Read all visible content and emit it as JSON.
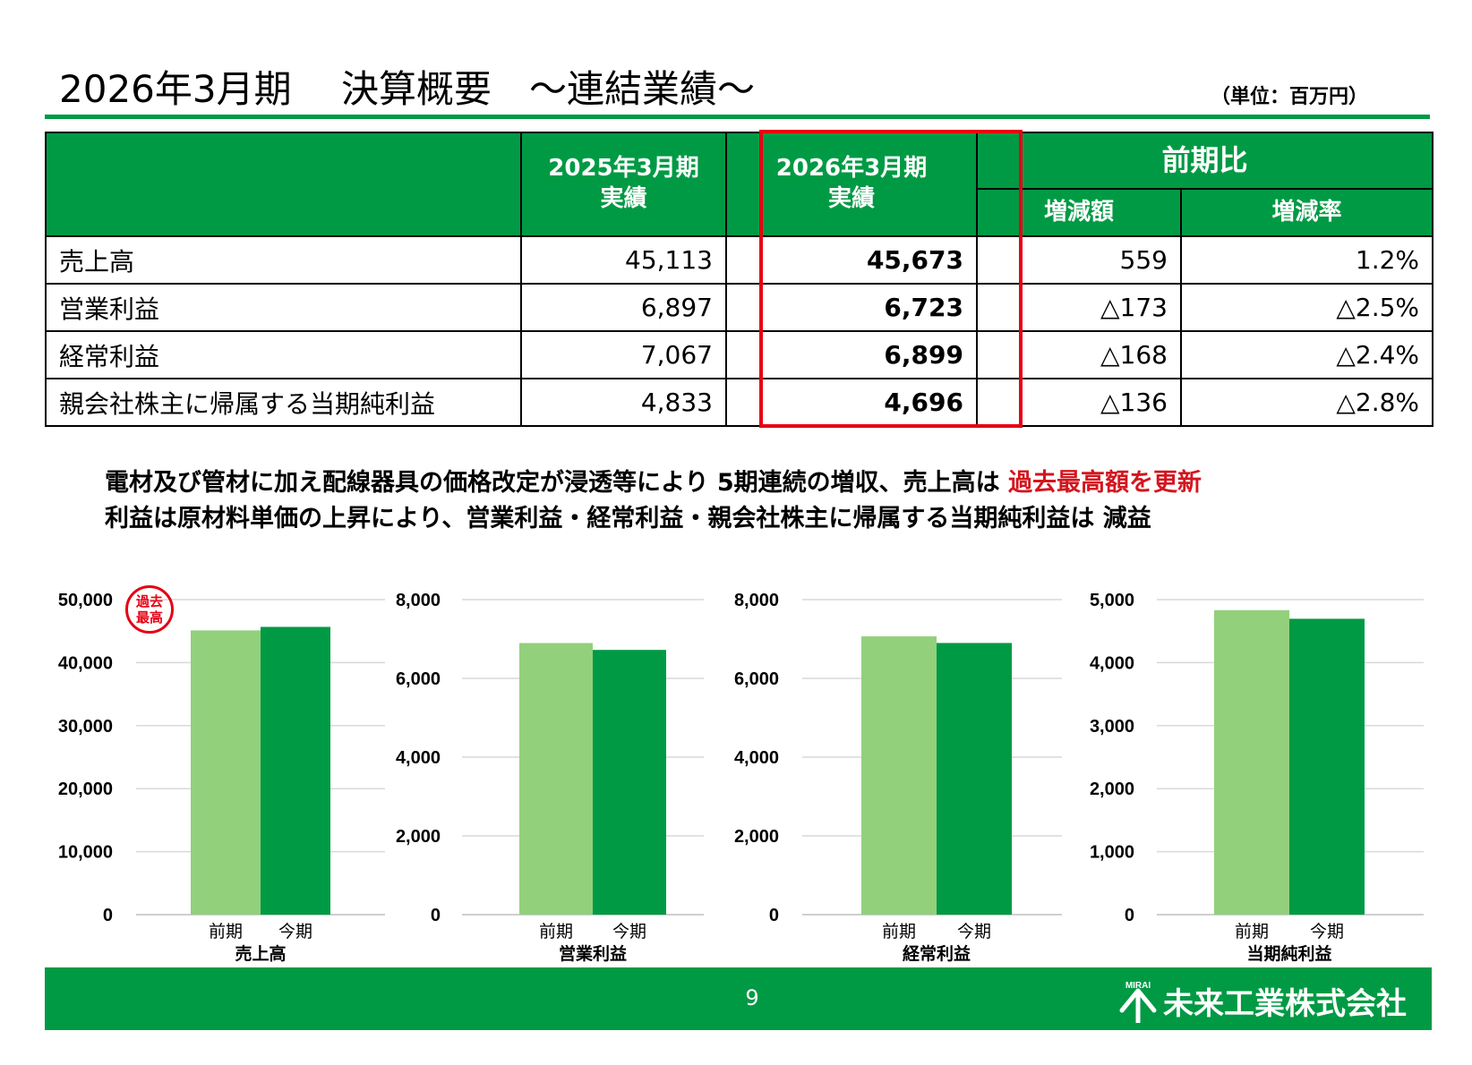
{
  "header": {
    "title": "2026年3月期　 決算概要　～連結業績～",
    "unit": "（単位：百万円）"
  },
  "table": {
    "col_prev": "2025年3月期\n実績",
    "col_prev_l1": "2025年3月期",
    "col_prev_l2": "実績",
    "col_curr_l1": "2026年3月期",
    "col_curr_l2": "実績",
    "col_compare": "前期比",
    "col_change": "増減額",
    "col_rate": "増減率",
    "rows": [
      {
        "label": "売上高",
        "prev": "45,113",
        "curr": "45,673",
        "change": "559",
        "rate": "1.2%"
      },
      {
        "label": "営業利益",
        "prev": "6,897",
        "curr": "6,723",
        "change": "△173",
        "rate": "△2.5%"
      },
      {
        "label": "経常利益",
        "prev": "7,067",
        "curr": "6,899",
        "change": "△168",
        "rate": "△2.4%"
      },
      {
        "label": "親会社株主に帰属する当期純利益",
        "prev": "4,833",
        "curr": "4,696",
        "change": "△136",
        "rate": "△2.8%"
      }
    ]
  },
  "summary": {
    "line1_a": "電材及び管材に加え配線器具の価格改定が浸透等により 5期連続の増収、売上高は ",
    "line1_b": "過去最高額を更新",
    "line2": "利益は原材料単価の上昇により、営業利益・経常利益・親会社株主に帰属する当期純利益は 減益"
  },
  "stamp": {
    "line1": "過去",
    "line2": "最高"
  },
  "colors": {
    "green": "#009a44",
    "light_green": "#92d07c",
    "red": "#e60012"
  },
  "chart_data": [
    {
      "type": "bar",
      "title": "売上高",
      "categories": [
        "前期",
        "今期"
      ],
      "values": [
        45113,
        45673
      ],
      "ylim": [
        0,
        50000
      ],
      "yticks": [
        "0",
        "10,000",
        "20,000",
        "30,000",
        "40,000",
        "50,000"
      ],
      "grid": true
    },
    {
      "type": "bar",
      "title": "営業利益",
      "categories": [
        "前期",
        "今期"
      ],
      "values": [
        6897,
        6723
      ],
      "ylim": [
        0,
        8000
      ],
      "yticks": [
        "0",
        "2,000",
        "4,000",
        "6,000",
        "8,000"
      ],
      "grid": true
    },
    {
      "type": "bar",
      "title": "経常利益",
      "categories": [
        "前期",
        "今期"
      ],
      "values": [
        7067,
        6899
      ],
      "ylim": [
        0,
        8000
      ],
      "yticks": [
        "0",
        "2,000",
        "4,000",
        "6,000",
        "8,000"
      ],
      "grid": true
    },
    {
      "type": "bar",
      "title": "当期純利益",
      "categories": [
        "前期",
        "今期"
      ],
      "values": [
        4833,
        4696
      ],
      "ylim": [
        0,
        5000
      ],
      "yticks": [
        "0",
        "1,000",
        "2,000",
        "3,000",
        "4,000",
        "5,000"
      ],
      "grid": true
    }
  ],
  "footer": {
    "page": "9",
    "company": "未来工業株式会社",
    "logo_text": "MIRAI"
  }
}
